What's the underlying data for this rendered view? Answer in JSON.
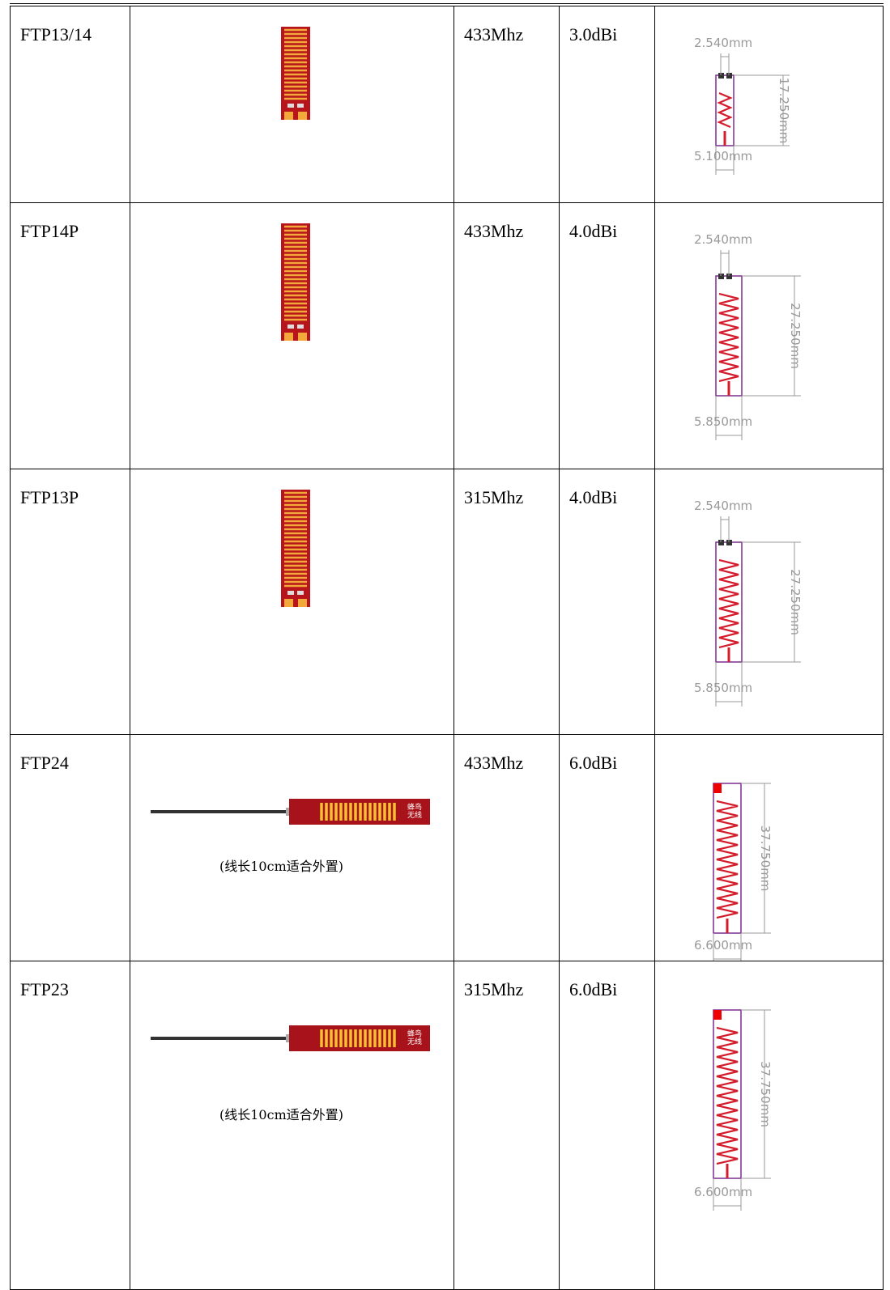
{
  "table": {
    "rows": [
      {
        "model": "FTP13/14",
        "frequency": "433Mhz",
        "gain": "3.0dBi",
        "dimensions": {
          "pitch": "2.540mm",
          "length": "17.250mm",
          "width": "5.100mm"
        }
      },
      {
        "model": "FTP14P",
        "frequency": "433Mhz",
        "gain": "4.0dBi",
        "dimensions": {
          "pitch": "2.540mm",
          "length": "27.250mm",
          "width": "5.850mm"
        }
      },
      {
        "model": "FTP13P",
        "frequency": "315Mhz",
        "gain": "4.0dBi",
        "dimensions": {
          "pitch": "2.540mm",
          "length": "27.250mm",
          "width": "5.850mm"
        }
      },
      {
        "model": "FTP24",
        "frequency": "433Mhz",
        "gain": "6.0dBi",
        "pcb_mark": [
          "蜂鸟",
          "无线"
        ],
        "caption": "(线长10cm适合外置)",
        "dimensions": {
          "length": "37.750mm",
          "width": "6.600mm"
        }
      },
      {
        "model": "FTP23",
        "frequency": "315Mhz",
        "gain": "6.0dBi",
        "pcb_mark": [
          "蜂鸟",
          "无线"
        ],
        "caption": "(线长10cm适合外置)",
        "dimensions": {
          "length": "37.750mm",
          "width": "6.600mm"
        }
      }
    ]
  }
}
